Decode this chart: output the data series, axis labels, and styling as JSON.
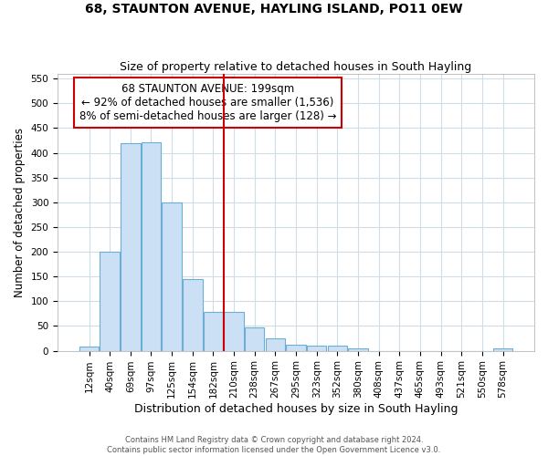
{
  "title": "68, STAUNTON AVENUE, HAYLING ISLAND, PO11 0EW",
  "subtitle": "Size of property relative to detached houses in South Hayling",
  "xlabel": "Distribution of detached houses by size in South Hayling",
  "ylabel": "Number of detached properties",
  "footer_line1": "Contains HM Land Registry data © Crown copyright and database right 2024.",
  "footer_line2": "Contains public sector information licensed under the Open Government Licence v3.0.",
  "bar_labels": [
    "12sqm",
    "40sqm",
    "69sqm",
    "97sqm",
    "125sqm",
    "154sqm",
    "182sqm",
    "210sqm",
    "238sqm",
    "267sqm",
    "295sqm",
    "323sqm",
    "352sqm",
    "380sqm",
    "408sqm",
    "437sqm",
    "465sqm",
    "493sqm",
    "521sqm",
    "550sqm",
    "578sqm"
  ],
  "bar_values": [
    8,
    200,
    420,
    422,
    300,
    145,
    78,
    78,
    48,
    25,
    12,
    10,
    10,
    5,
    0,
    0,
    0,
    0,
    0,
    0,
    4
  ],
  "bar_color": "#cce0f5",
  "bar_edge_color": "#6aaed6",
  "background_color": "#ffffff",
  "grid_color": "#d0dce8",
  "annotation_line1": "68 STAUNTON AVENUE: 199sqm",
  "annotation_line2": "← 92% of detached houses are smaller (1,536)",
  "annotation_line3": "8% of semi-detached houses are larger (128) →",
  "vline_index": 7,
  "vline_color": "#cc0000",
  "annotation_box_edge_color": "#cc0000",
  "ylim": [
    0,
    560
  ],
  "yticks": [
    0,
    50,
    100,
    150,
    200,
    250,
    300,
    350,
    400,
    450,
    500,
    550
  ],
  "title_fontsize": 10,
  "subtitle_fontsize": 9,
  "xlabel_fontsize": 9,
  "ylabel_fontsize": 8.5,
  "tick_fontsize": 7.5,
  "annotation_fontsize": 8.5
}
